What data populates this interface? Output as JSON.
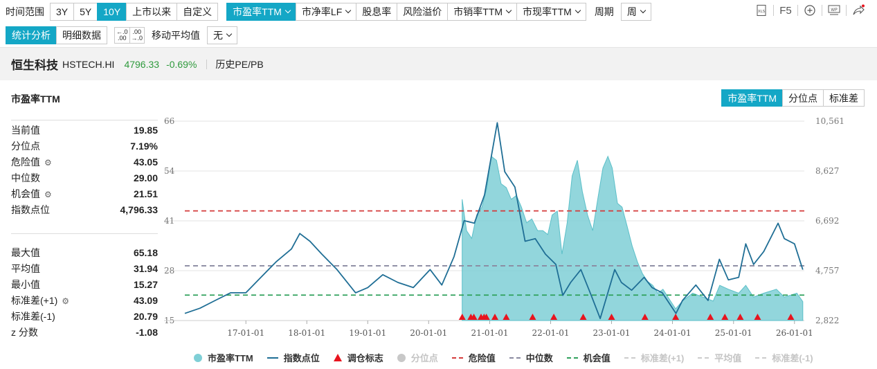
{
  "toolbar": {
    "range_label": "时间范围",
    "range_options": [
      "3Y",
      "5Y",
      "10Y",
      "上市以来",
      "自定义"
    ],
    "range_active": "10Y",
    "metric_options": [
      "市盈率TTM",
      "市净率LF",
      "股息率",
      "风险溢价",
      "市销率TTM",
      "市现率TTM"
    ],
    "metric_active": "市盈率TTM",
    "period_label": "周期",
    "period_value": "周",
    "right": {
      "xls": "XLS",
      "f5": "F5",
      "wp": "WP"
    }
  },
  "toolbar2": {
    "tabs": [
      "统计分析",
      "明细数据"
    ],
    "tab_active": "统计分析",
    "decimal_add": ".00",
    "decimal_sub": ".00",
    "ma_label": "移动平均值",
    "ma_value": "无"
  },
  "info": {
    "name": "恒生科技",
    "code": "HSTECH.HI",
    "price": "4796.33",
    "change": "-0.69%",
    "link": "历史PE/PB"
  },
  "panel": {
    "title": "市盈率TTM",
    "view_tabs": [
      "市盈率TTM",
      "分位点",
      "标准差"
    ],
    "view_active": "市盈率TTM"
  },
  "stats_top": [
    {
      "label": "当前值",
      "value": "19.85",
      "gear": false
    },
    {
      "label": "分位点",
      "value": "7.19%",
      "gear": false
    },
    {
      "label": "危险值",
      "value": "43.05",
      "gear": true
    },
    {
      "label": "中位数",
      "value": "29.00",
      "gear": false
    },
    {
      "label": "机会值",
      "value": "21.51",
      "gear": true
    },
    {
      "label": "指数点位",
      "value": "4,796.33",
      "gear": false
    }
  ],
  "stats_bottom": [
    {
      "label": "最大值",
      "value": "65.18",
      "gear": false
    },
    {
      "label": "平均值",
      "value": "31.94",
      "gear": false
    },
    {
      "label": "最小值",
      "value": "15.27",
      "gear": false
    },
    {
      "label": "标准差(+1)",
      "value": "43.09",
      "gear": true
    },
    {
      "label": "标准差(-1)",
      "value": "20.79",
      "gear": false
    },
    {
      "label": "z 分数",
      "value": "-1.08",
      "gear": false
    }
  ],
  "chart_data": {
    "type": "area",
    "x_start": "2016-01-01",
    "x_end": "2026-03-01",
    "x_ticks": [
      "17-01-01",
      "18-01-01",
      "19-01-01",
      "20-01-01",
      "21-01-01",
      "22-01-01",
      "23-01-01",
      "24-01-01",
      "25-01-01",
      "26-01-01"
    ],
    "y_left_ticks": [
      "66",
      "54",
      "41",
      "28",
      "15"
    ],
    "y_left_range": [
      15,
      66
    ],
    "y_right_ticks": [
      "10,561",
      "8,627",
      "6,692",
      "4,757",
      "2,822"
    ],
    "y_right_range": [
      2822,
      10561
    ],
    "danger": 43.05,
    "median": 29.0,
    "opportunity": 21.51,
    "colors": {
      "pe_fill": "#7fcfd6",
      "pe_line": "#5bbfc8",
      "index": "#1f6e95",
      "danger": "#d43a3a",
      "median": "#8a8aa0",
      "opportunity": "#2ea05a",
      "marker": "#e8141e"
    },
    "series": [
      {
        "name": "市盈率TTM",
        "axis": "left",
        "start": "2020-07-20",
        "points": [
          [
            "2020-07-20",
            46
          ],
          [
            "2020-08-15",
            38
          ],
          [
            "2020-09-15",
            36
          ],
          [
            "2020-10-15",
            42
          ],
          [
            "2020-11-15",
            44
          ],
          [
            "2020-12-15",
            49
          ],
          [
            "2021-01-10",
            57
          ],
          [
            "2021-02-10",
            56
          ],
          [
            "2021-03-10",
            50
          ],
          [
            "2021-04-10",
            49
          ],
          [
            "2021-05-10",
            46
          ],
          [
            "2021-06-10",
            47
          ],
          [
            "2021-07-10",
            44
          ],
          [
            "2021-08-10",
            40
          ],
          [
            "2021-09-10",
            41
          ],
          [
            "2021-10-15",
            38
          ],
          [
            "2021-11-15",
            38
          ],
          [
            "2021-12-15",
            37
          ],
          [
            "2022-01-10",
            42
          ],
          [
            "2022-02-10",
            43
          ],
          [
            "2022-03-10",
            32
          ],
          [
            "2022-04-10",
            40
          ],
          [
            "2022-05-10",
            52
          ],
          [
            "2022-06-10",
            56
          ],
          [
            "2022-07-10",
            48
          ],
          [
            "2022-08-10",
            42
          ],
          [
            "2022-09-10",
            38
          ],
          [
            "2022-10-10",
            46
          ],
          [
            "2022-11-10",
            54
          ],
          [
            "2022-12-10",
            57
          ],
          [
            "2023-01-05",
            54
          ],
          [
            "2023-02-05",
            45
          ],
          [
            "2023-03-05",
            44
          ],
          [
            "2023-04-05",
            39
          ],
          [
            "2023-05-05",
            34
          ],
          [
            "2023-06-05",
            30
          ],
          [
            "2023-07-05",
            27
          ],
          [
            "2023-08-05",
            25
          ],
          [
            "2023-09-05",
            24
          ],
          [
            "2023-10-05",
            22
          ],
          [
            "2023-11-05",
            23
          ],
          [
            "2023-12-05",
            21
          ],
          [
            "2024-01-20",
            18
          ],
          [
            "2024-03-01",
            20
          ],
          [
            "2024-05-01",
            22
          ],
          [
            "2024-07-01",
            21
          ],
          [
            "2024-09-01",
            20
          ],
          [
            "2024-10-10",
            24
          ],
          [
            "2024-12-01",
            23
          ],
          [
            "2025-02-01",
            22
          ],
          [
            "2025-03-15",
            24
          ],
          [
            "2025-05-01",
            21
          ],
          [
            "2025-07-01",
            22
          ],
          [
            "2025-09-15",
            23
          ],
          [
            "2025-11-01",
            21
          ],
          [
            "2026-01-15",
            22
          ],
          [
            "2026-02-20",
            19.85
          ]
        ]
      },
      {
        "name": "指数点位",
        "axis": "right",
        "points": [
          [
            "2016-01-01",
            3100
          ],
          [
            "2016-04-01",
            3300
          ],
          [
            "2016-07-01",
            3600
          ],
          [
            "2016-10-01",
            3900
          ],
          [
            "2017-01-01",
            3900
          ],
          [
            "2017-04-01",
            4500
          ],
          [
            "2017-07-01",
            5100
          ],
          [
            "2017-10-01",
            5600
          ],
          [
            "2017-11-20",
            6200
          ],
          [
            "2018-01-20",
            5900
          ],
          [
            "2018-04-01",
            5400
          ],
          [
            "2018-07-01",
            4800
          ],
          [
            "2018-10-20",
            3900
          ],
          [
            "2019-01-01",
            4100
          ],
          [
            "2019-04-01",
            4600
          ],
          [
            "2019-07-01",
            4300
          ],
          [
            "2019-10-01",
            4100
          ],
          [
            "2020-01-10",
            4800
          ],
          [
            "2020-03-20",
            4200
          ],
          [
            "2020-06-01",
            5300
          ],
          [
            "2020-08-01",
            6700
          ],
          [
            "2020-10-01",
            6600
          ],
          [
            "2020-12-01",
            7700
          ],
          [
            "2021-02-15",
            10500
          ],
          [
            "2021-04-01",
            8600
          ],
          [
            "2021-06-01",
            8000
          ],
          [
            "2021-08-01",
            5900
          ],
          [
            "2021-10-01",
            6000
          ],
          [
            "2021-12-01",
            5400
          ],
          [
            "2022-02-01",
            5000
          ],
          [
            "2022-03-15",
            3800
          ],
          [
            "2022-05-01",
            4300
          ],
          [
            "2022-07-01",
            4800
          ],
          [
            "2022-09-01",
            3800
          ],
          [
            "2022-10-25",
            2900
          ],
          [
            "2023-01-20",
            4800
          ],
          [
            "2023-03-01",
            4300
          ],
          [
            "2023-05-01",
            4000
          ],
          [
            "2023-07-15",
            4500
          ],
          [
            "2023-09-01",
            4100
          ],
          [
            "2023-11-01",
            3900
          ],
          [
            "2024-01-22",
            3100
          ],
          [
            "2024-03-01",
            3600
          ],
          [
            "2024-05-20",
            4200
          ],
          [
            "2024-08-01",
            3600
          ],
          [
            "2024-10-08",
            5200
          ],
          [
            "2024-12-01",
            4400
          ],
          [
            "2025-02-01",
            4500
          ],
          [
            "2025-03-15",
            5800
          ],
          [
            "2025-05-01",
            5000
          ],
          [
            "2025-07-01",
            5500
          ],
          [
            "2025-09-25",
            6600
          ],
          [
            "2025-11-01",
            6000
          ],
          [
            "2026-01-01",
            5800
          ],
          [
            "2026-02-20",
            4796
          ]
        ]
      }
    ],
    "markers": [
      "2020-07-20",
      "2020-09-10",
      "2020-09-28",
      "2020-11-10",
      "2020-11-28",
      "2020-12-12",
      "2021-02-01",
      "2021-04-10",
      "2021-09-15",
      "2022-01-20",
      "2022-07-15",
      "2023-01-01",
      "2023-07-20",
      "2024-01-20",
      "2024-08-15",
      "2024-11-10",
      "2025-02-10",
      "2025-05-25",
      "2025-12-10"
    ],
    "legend": [
      {
        "label": "市盈率TTM",
        "kind": "dot",
        "color": "#7fcfd6",
        "dim": false
      },
      {
        "label": "指数点位",
        "kind": "line",
        "color": "#1f6e95",
        "dim": false
      },
      {
        "label": "调仓标志",
        "kind": "tri",
        "color": "#e8141e",
        "dim": false
      },
      {
        "label": "分位点",
        "kind": "dot",
        "color": "#c8c8c8",
        "dim": true
      },
      {
        "label": "危险值",
        "kind": "dash",
        "color": "#d43a3a",
        "dim": false
      },
      {
        "label": "中位数",
        "kind": "dash",
        "color": "#8a8aa0",
        "dim": false
      },
      {
        "label": "机会值",
        "kind": "dash",
        "color": "#2ea05a",
        "dim": false
      },
      {
        "label": "标准差(+1)",
        "kind": "dash",
        "color": "#cccccc",
        "dim": true
      },
      {
        "label": "平均值",
        "kind": "dash",
        "color": "#cccccc",
        "dim": true
      },
      {
        "label": "标准差(-1)",
        "kind": "dash",
        "color": "#cccccc",
        "dim": true
      }
    ]
  }
}
